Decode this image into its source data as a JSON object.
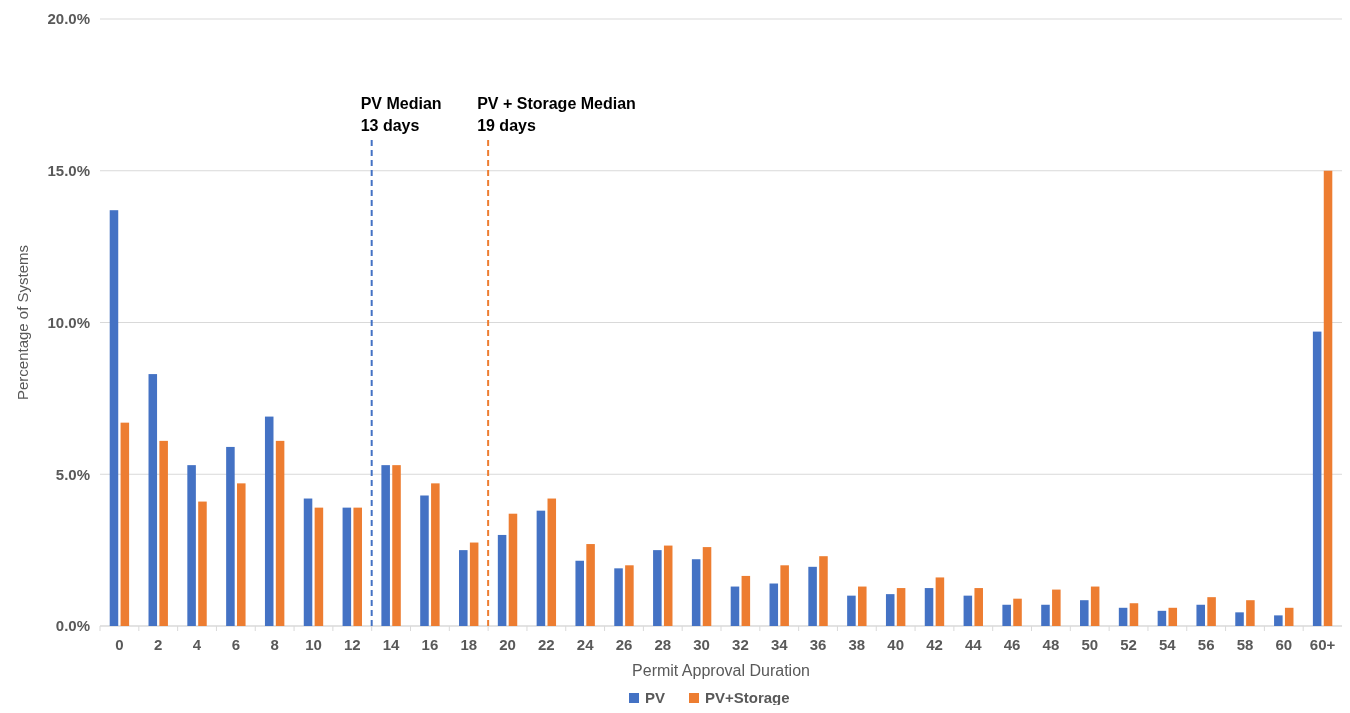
{
  "chart_data": {
    "type": "bar",
    "xlabel": "Permit Approval Duration",
    "ylabel": "Percentage of Systems",
    "x": [
      0,
      2,
      4,
      6,
      8,
      10,
      12,
      14,
      16,
      18,
      20,
      22,
      24,
      26,
      28,
      30,
      32,
      34,
      36,
      38,
      40,
      42,
      44,
      46,
      48,
      50,
      52,
      54,
      56,
      58,
      60,
      62
    ],
    "series": [
      {
        "name": "PV",
        "color": "#4472c4",
        "values": [
          13.7,
          8.3,
          5.3,
          5.9,
          6.9,
          4.2,
          3.9,
          5.3,
          4.3,
          2.5,
          3.0,
          3.8,
          2.15,
          1.9,
          2.5,
          2.2,
          1.3,
          1.4,
          1.95,
          1.0,
          1.05,
          1.25,
          1.0,
          0.7,
          0.7,
          0.85,
          0.6,
          0.5,
          0.7,
          0.45,
          0.35,
          9.7
        ]
      },
      {
        "name": "PV+Storage",
        "color": "#ed7d31",
        "values": [
          6.7,
          6.1,
          4.1,
          4.7,
          6.1,
          3.9,
          3.9,
          5.3,
          4.7,
          2.75,
          3.7,
          4.2,
          2.7,
          2.0,
          2.65,
          2.6,
          1.65,
          2.0,
          2.3,
          1.3,
          1.25,
          1.6,
          1.25,
          0.9,
          1.2,
          1.3,
          0.75,
          0.6,
          0.95,
          0.85,
          0.6,
          15.0
        ]
      }
    ],
    "xlim": [
      -1,
      63
    ],
    "xticks": [
      0,
      2,
      4,
      6,
      8,
      10,
      12,
      14,
      16,
      18,
      20,
      22,
      24,
      26,
      28,
      30,
      32,
      34,
      36,
      38,
      40,
      42,
      44,
      46,
      48,
      50,
      52,
      54,
      56,
      58,
      60,
      {
        "value": 62,
        "label": "60+"
      }
    ],
    "ylim": [
      0,
      20
    ],
    "yticks": [
      {
        "value": 0,
        "label": "0.0%"
      },
      {
        "value": 5,
        "label": "5.0%"
      },
      {
        "value": 10,
        "label": "10.0%"
      },
      {
        "value": 15,
        "label": "15.0%"
      },
      {
        "value": 20,
        "label": "20.0%"
      }
    ],
    "grid": "y",
    "legend": "bottom",
    "ref_lines": [
      {
        "axis": "x",
        "value": 13,
        "label": "PV Median\n13 days",
        "color": "#4472c4",
        "line_style": "dashed"
      },
      {
        "axis": "x",
        "value": 19,
        "label": "PV + Storage Median\n19 days",
        "color": "#ed7d31",
        "line_style": "dashed"
      }
    ]
  }
}
